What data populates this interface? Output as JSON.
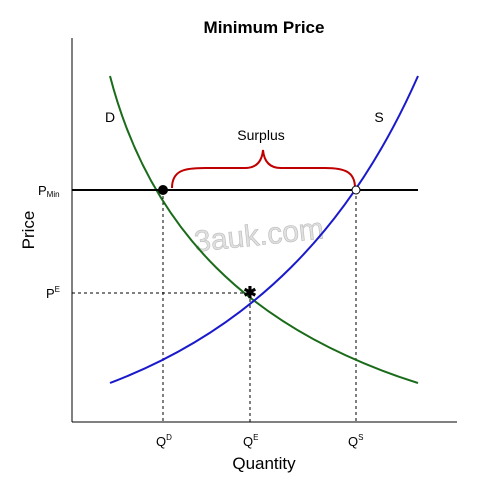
{
  "title": "Minimum Price",
  "axes": {
    "x_label": "Quantity",
    "y_label": "Price"
  },
  "curves": {
    "demand": "D",
    "supply": "S"
  },
  "annotation": "Surplus",
  "y_labels": [
    {
      "base": "P",
      "sub": "Min"
    },
    {
      "base": "P",
      "sup": "E"
    }
  ],
  "x_labels": [
    {
      "base": "Q",
      "sup": "D"
    },
    {
      "base": "Q",
      "sup": "E"
    },
    {
      "base": "Q",
      "sup": "S"
    }
  ],
  "watermark": "3auk.com"
}
